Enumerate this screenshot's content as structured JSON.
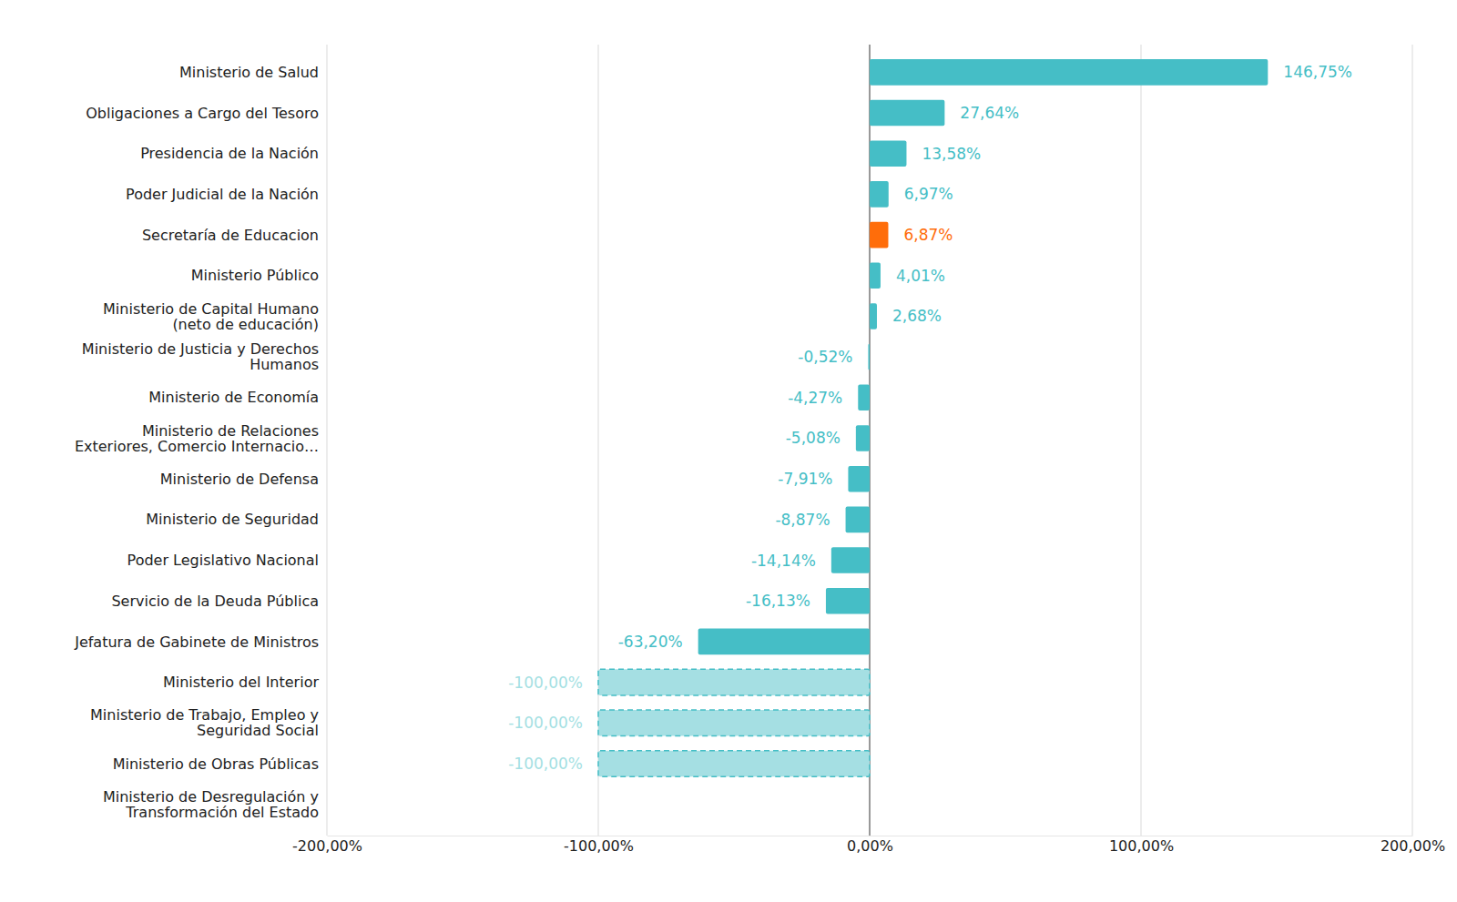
{
  "chart_data": {
    "type": "bar",
    "orientation": "horizontal",
    "categories": [
      "Ministerio de Salud",
      "Obligaciones a Cargo del Tesoro",
      "Presidencia de la Nación",
      "Poder Judicial de la Nación",
      "Secretaría de Educacion",
      "Ministerio Público",
      "Ministerio de Capital Humano\n(neto de educación)",
      "Ministerio de Justicia y Derechos\nHumanos",
      "Ministerio de Economía",
      "Ministerio de Relaciones\nExteriores, Comercio Internacio…",
      "Ministerio de Defensa",
      "Ministerio de Seguridad",
      "Poder Legislativo Nacional",
      "Servicio de la Deuda Pública",
      "Jefatura de Gabinete de Ministros",
      "Ministerio del Interior",
      "Ministerio de Trabajo, Empleo y\nSeguridad Social",
      "Ministerio de Obras Públicas",
      "Ministerio de Desregulación y\nTransformación del Estado"
    ],
    "values": [
      146.75,
      27.64,
      13.58,
      6.97,
      6.87,
      4.01,
      2.68,
      -0.52,
      -4.27,
      -5.08,
      -7.91,
      -8.87,
      -14.14,
      -16.13,
      -63.2,
      -100,
      -100,
      -100,
      null
    ],
    "value_labels": [
      "146,75%",
      "27,64%",
      "13,58%",
      "6,97%",
      "6,87%",
      "4,01%",
      "2,68%",
      "-0,52%",
      "-4,27%",
      "-5,08%",
      "-7,91%",
      "-8,87%",
      "-14,14%",
      "-16,13%",
      "-63,20%",
      "-100,00%",
      "-100,00%",
      "-100,00%",
      null
    ],
    "color": "#45bec6",
    "colors": [
      "#45bec6",
      "#45bec6",
      "#45bec6",
      "#45bec6",
      "#ff6d0a",
      "#45bec6",
      "#45bec6",
      "#45bec6",
      "#45bec6",
      "#45bec6",
      "#45bec6",
      "#45bec6",
      "#45bec6",
      "#45bec6",
      "#45bec6",
      "#a5dfe3",
      "#a5dfe3",
      "#a5dfe3",
      "#45bec6"
    ],
    "xlim": [
      -200,
      200
    ],
    "xticks": [
      {
        "value": -200,
        "label": "-200,00%"
      },
      {
        "value": -100,
        "label": "-100,00%"
      },
      {
        "value": 0,
        "label": "0,00%"
      },
      {
        "value": 100,
        "label": "100,00%"
      },
      {
        "value": 200,
        "label": "200,00%"
      }
    ],
    "grid": true,
    "data_labels": true
  }
}
